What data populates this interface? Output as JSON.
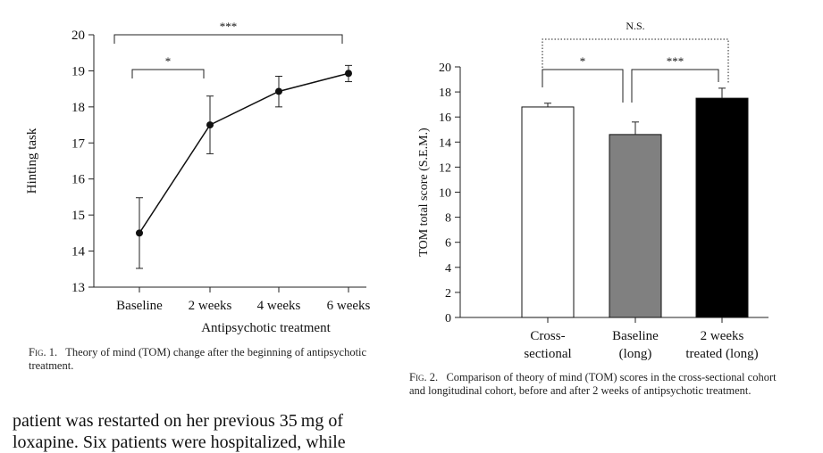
{
  "chart_data": [
    {
      "type": "line",
      "xlabel": "Antipsychotic treatment",
      "ylabel": "Hinting task",
      "categories": [
        "Baseline",
        "2 weeks",
        "4 weeks",
        "6 weeks"
      ],
      "values": [
        14.5,
        17.5,
        18.43,
        18.93
      ],
      "error_low": [
        13.52,
        16.7,
        18.0,
        18.7
      ],
      "error_high": [
        15.48,
        18.3,
        18.85,
        19.15
      ],
      "ylim": [
        13,
        20
      ],
      "yticks": [
        13,
        14,
        15,
        16,
        17,
        18,
        19,
        20
      ],
      "significance": [
        {
          "from": "Baseline",
          "to": "2 weeks",
          "label": "*"
        },
        {
          "from": "Baseline",
          "to": "6 weeks",
          "label": "***"
        }
      ]
    },
    {
      "type": "bar",
      "ylabel": "TOM total score (S.E.M.)",
      "categories": [
        [
          "Cross-",
          "sectional"
        ],
        [
          "Baseline",
          "(long)"
        ],
        [
          "2 weeks",
          "treated (long)"
        ]
      ],
      "values": [
        16.8,
        14.6,
        17.5
      ],
      "error_high": [
        17.1,
        15.6,
        18.3
      ],
      "bar_colors": [
        "#ffffff",
        "#808080",
        "#000000"
      ],
      "ylim": [
        0,
        20
      ],
      "yticks": [
        0,
        2,
        4,
        6,
        8,
        10,
        12,
        14,
        16,
        18,
        20
      ],
      "significance": [
        {
          "from": 0,
          "to": 1,
          "label": "*",
          "style": "solid"
        },
        {
          "from": 1,
          "to": 2,
          "label": "***",
          "style": "solid"
        },
        {
          "from": 0,
          "to": 2,
          "label": "N.S.",
          "style": "dotted"
        }
      ]
    }
  ],
  "captions": {
    "fig1_label": "Fig. 1.",
    "fig1_text": "Theory of mind (TOM) change after the beginning of antipsychotic treatment.",
    "fig2_label": "Fig. 2.",
    "fig2_text": "Comparison of theory of mind (TOM) scores in the cross-sectional cohort and longitudinal cohort, before and after 2 weeks of antipsychotic treatment."
  },
  "body_text": {
    "line1": "patient was restarted on her previous 35 mg of",
    "line2": "loxapine. Six patients were hospitalized, while"
  }
}
